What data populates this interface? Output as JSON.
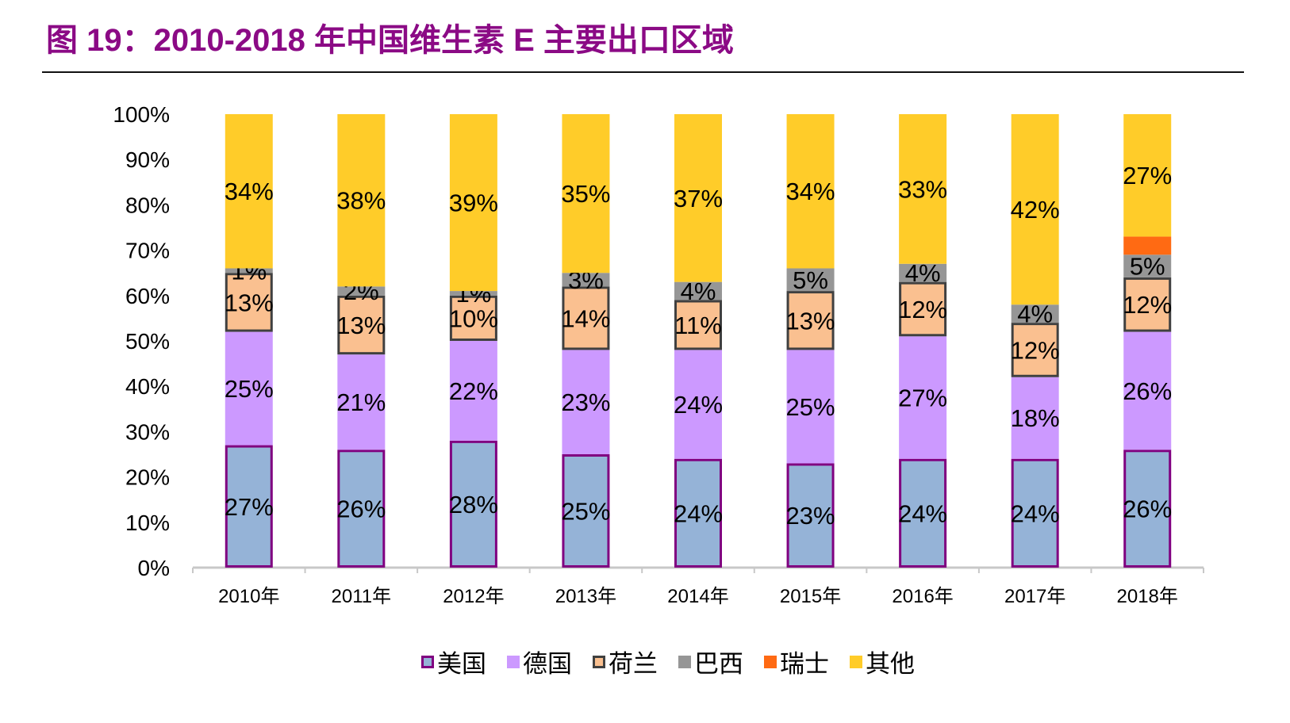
{
  "title": "图 19：2010-2018 年中国维生素 E 主要出口区域",
  "chart_data": {
    "type": "stacked-bar-100",
    "categories": [
      "2010年",
      "2011年",
      "2012年",
      "2013年",
      "2014年",
      "2015年",
      "2016年",
      "2017年",
      "2018年"
    ],
    "ylim": [
      0,
      100
    ],
    "yticks": [
      "0%",
      "10%",
      "20%",
      "30%",
      "40%",
      "50%",
      "60%",
      "70%",
      "80%",
      "90%",
      "100%"
    ],
    "legend_position": "bottom",
    "series": [
      {
        "name": "美国",
        "color": "#95B3D7",
        "border": "#800080",
        "values": [
          27,
          26,
          28,
          25,
          24,
          23,
          24,
          24,
          26
        ],
        "labeled": true
      },
      {
        "name": "德国",
        "color": "#CC99FF",
        "border": "",
        "values": [
          25,
          21,
          22,
          23,
          24,
          25,
          27,
          18,
          26
        ],
        "labeled": true
      },
      {
        "name": "荷兰",
        "color": "#FAC090",
        "border": "#404040",
        "values": [
          13,
          13,
          10,
          14,
          11,
          13,
          12,
          12,
          12
        ],
        "labeled": true
      },
      {
        "name": "巴西",
        "color": "#969696",
        "border": "",
        "values": [
          1,
          2,
          1,
          3,
          4,
          5,
          4,
          4,
          5
        ],
        "labeled": true
      },
      {
        "name": "瑞士",
        "color": "#FF6A13",
        "border": "",
        "values": [
          0,
          0,
          0,
          0,
          0,
          0,
          0,
          0,
          4
        ],
        "labeled": false
      },
      {
        "name": "其他",
        "color": "#FFCC29",
        "border": "",
        "values": [
          34,
          38,
          39,
          35,
          37,
          34,
          33,
          42,
          27
        ],
        "labeled": true
      }
    ]
  }
}
